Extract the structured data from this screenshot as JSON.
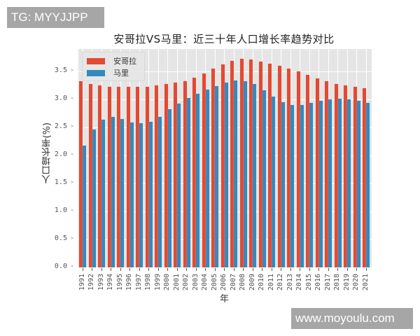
{
  "watermarks": {
    "top": "TG: MYYJJPP",
    "bottom": "www.moyoulu.com"
  },
  "chart_data": {
    "type": "bar",
    "title": "安哥拉VS马里：近三十年人口增长率趋势对比",
    "xlabel": "年",
    "ylabel": "人口增长率(%)",
    "ylim": [
      0,
      3.9
    ],
    "yticks": [
      "0.0",
      "0.5",
      "1.0",
      "1.5",
      "2.0",
      "2.5",
      "3.0",
      "3.5"
    ],
    "grid": true,
    "legend_position": "upper left",
    "colors": {
      "安哥拉": "#e24a33",
      "马里": "#348abd",
      "background": "#e5e5e5"
    },
    "categories": [
      "1991",
      "1992",
      "1993",
      "1994",
      "1995",
      "1996",
      "1997",
      "1998",
      "1999",
      "2000",
      "2001",
      "2002",
      "2003",
      "2004",
      "2005",
      "2006",
      "2007",
      "2008",
      "2009",
      "2010",
      "2011",
      "2012",
      "2013",
      "2014",
      "2015",
      "2016",
      "2017",
      "2018",
      "2019",
      "2020",
      "2021"
    ],
    "series": [
      {
        "name": "安哥拉",
        "values": [
          3.33,
          3.28,
          3.25,
          3.23,
          3.22,
          3.22,
          3.22,
          3.23,
          3.25,
          3.28,
          3.3,
          3.33,
          3.39,
          3.46,
          3.55,
          3.63,
          3.69,
          3.72,
          3.71,
          3.68,
          3.64,
          3.6,
          3.55,
          3.5,
          3.44,
          3.38,
          3.33,
          3.28,
          3.25,
          3.22,
          3.2
        ]
      },
      {
        "name": "马里",
        "values": [
          2.17,
          2.46,
          2.64,
          2.69,
          2.65,
          2.59,
          2.57,
          2.6,
          2.69,
          2.82,
          2.93,
          3.02,
          3.1,
          3.18,
          3.24,
          3.3,
          3.34,
          3.33,
          3.27,
          3.16,
          3.05,
          2.95,
          2.9,
          2.9,
          2.94,
          2.97,
          3.0,
          3.01,
          3.0,
          2.97,
          2.94
        ]
      }
    ]
  }
}
